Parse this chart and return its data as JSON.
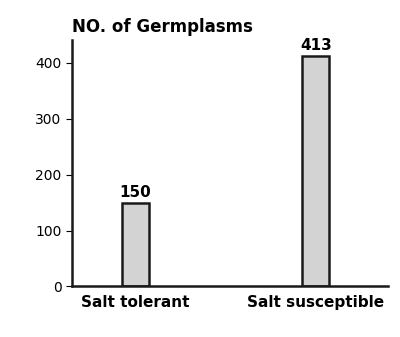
{
  "categories": [
    "Salt tolerant",
    "Salt susceptible"
  ],
  "values": [
    150,
    413
  ],
  "bar_color": "#d3d3d3",
  "bar_edgecolor": "#1a1a1a",
  "title": "NO. of Germplasms",
  "ylim": [
    0,
    440
  ],
  "yticks": [
    0,
    100,
    200,
    300,
    400
  ],
  "bar_width": 0.3,
  "title_fontsize": 12,
  "tick_fontsize": 10,
  "label_fontsize": 11,
  "annotation_fontsize": 11,
  "background_color": "#ffffff",
  "bar_positions": [
    1,
    3
  ],
  "xlim": [
    0.3,
    3.8
  ]
}
